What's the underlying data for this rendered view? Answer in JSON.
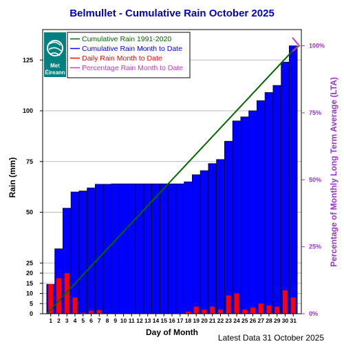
{
  "chart_data": {
    "type": "bar",
    "title": "Belmullet - Cumulative Rain October   2025",
    "xlabel": "Day of Month",
    "ylabel": "Rain (mm)",
    "y2label": "Percentage  of Monthly Long Term Average (LTA)",
    "footer": "Latest Data 31 October 2025",
    "logo_text": [
      "Met",
      "Éireann"
    ],
    "ylim": [
      0,
      140
    ],
    "y_ticks": [
      0,
      5,
      10,
      15,
      20,
      25,
      50,
      75,
      100,
      125
    ],
    "y2_ticks": [
      {
        "label": "0%",
        "value": 0
      },
      {
        "label": "25%",
        "value": 33
      },
      {
        "label": "50%",
        "value": 66
      },
      {
        "label": "75%",
        "value": 99
      },
      {
        "label": "100%",
        "value": 132
      }
    ],
    "grid": true,
    "legend_position": "top-left",
    "days": [
      1,
      2,
      3,
      4,
      5,
      6,
      7,
      8,
      9,
      10,
      11,
      12,
      13,
      14,
      15,
      16,
      17,
      18,
      19,
      20,
      21,
      22,
      23,
      24,
      25,
      26,
      27,
      28,
      29,
      30,
      31
    ],
    "series": [
      {
        "name": "Cumulative Rain 1991-2020",
        "kind": "line",
        "color": "#006600",
        "start": 0,
        "end": 132
      },
      {
        "name": "Cumulative Rain Month to Date",
        "kind": "bar",
        "color": "#0000ff",
        "values": [
          14.5,
          32,
          52,
          60,
          60.5,
          62,
          63.8,
          63.8,
          64,
          64,
          64,
          64,
          64,
          64,
          64,
          64,
          64,
          65,
          68.5,
          70.5,
          74,
          76,
          85,
          95,
          97,
          100,
          105,
          109,
          112.5,
          124,
          132
        ]
      },
      {
        "name": "Daily Rain Month to Date",
        "kind": "bar",
        "color": "#ff0000",
        "values": [
          14.5,
          17.5,
          20,
          8,
          0.5,
          1.5,
          1.8,
          0,
          0.2,
          0,
          0,
          0,
          0,
          0,
          0,
          0,
          0,
          1,
          3.5,
          2,
          3.5,
          2,
          9,
          10,
          2,
          3,
          5,
          4,
          3.5,
          11.5,
          8
        ]
      },
      {
        "name": "Percentage Rain Month to Date",
        "kind": "marker",
        "color": "#cc33cc",
        "value": 100
      }
    ]
  }
}
